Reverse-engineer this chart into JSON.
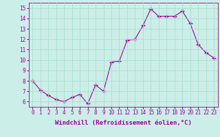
{
  "x": [
    0,
    1,
    2,
    3,
    4,
    5,
    6,
    7,
    8,
    9,
    10,
    11,
    12,
    13,
    14,
    15,
    16,
    17,
    18,
    19,
    20,
    21,
    22,
    23
  ],
  "y": [
    8.0,
    7.1,
    6.6,
    6.2,
    6.0,
    6.4,
    6.7,
    5.8,
    7.6,
    7.0,
    9.8,
    9.9,
    11.9,
    12.0,
    13.3,
    14.9,
    14.2,
    14.2,
    14.2,
    14.7,
    13.5,
    11.5,
    10.7,
    10.2
  ],
  "color": "#990099",
  "bg_color": "#cceee8",
  "grid_color": "#aaddcc",
  "xlabel": "Windchill (Refroidissement éolien,°C)",
  "xlim": [
    -0.5,
    23.5
  ],
  "ylim": [
    5.5,
    15.5
  ],
  "yticks": [
    6,
    7,
    8,
    9,
    10,
    11,
    12,
    13,
    14,
    15
  ],
  "xticks": [
    0,
    1,
    2,
    3,
    4,
    5,
    6,
    7,
    8,
    9,
    10,
    11,
    12,
    13,
    14,
    15,
    16,
    17,
    18,
    19,
    20,
    21,
    22,
    23
  ],
  "tick_fontsize": 5.5,
  "xlabel_fontsize": 6.5,
  "marker": "+",
  "marker_size": 4,
  "line_width": 0.8
}
